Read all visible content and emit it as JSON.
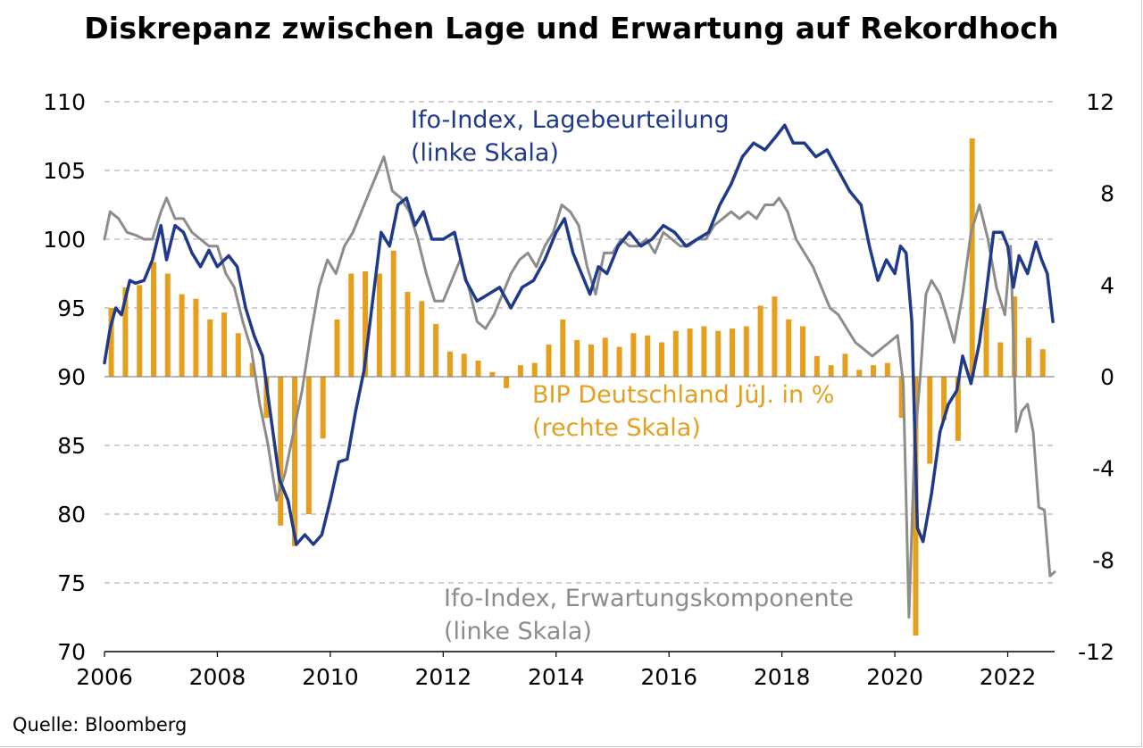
{
  "source": "Quelle: Bloomberg",
  "colors": {
    "ifo_lage": "#1f3a8a",
    "ifo_erwartung": "#8c8c8c",
    "bip": "#e69f1c",
    "grid": "#b4b4b4"
  },
  "chart_data": {
    "type": "line",
    "title": "Diskrepanz zwischen Lage und Erwartung auf Rekordhoch",
    "xlim": [
      2006.0,
      2022.83
    ],
    "x_ticks": [
      "2006",
      "2008",
      "2010",
      "2012",
      "2014",
      "2016",
      "2018",
      "2020",
      "2022"
    ],
    "y_left": {
      "lim": [
        70,
        110
      ],
      "ticks": [
        "70",
        "75",
        "80",
        "85",
        "90",
        "95",
        "100",
        "105",
        "110"
      ]
    },
    "y_right": {
      "lim": [
        -12,
        12
      ],
      "ticks": [
        "-12",
        "-8",
        "-4",
        "0",
        "4",
        "8",
        "12"
      ]
    },
    "grid": "horizontal dashed",
    "annotations": {
      "lage": [
        "Ifo-Index, Lagebeurteilung",
        "(linke Skala)"
      ],
      "bip": [
        "BIP Deutschland JüJ. in %",
        "(rechte Skala)"
      ],
      "erwartung": [
        "Ifo-Index, Erwartungskomponente",
        "(linke Skala)"
      ]
    },
    "series": [
      {
        "name": "Ifo-Index, Lagebeurteilung",
        "axis": "left",
        "x": [
          2006.0,
          2006.1,
          2006.2,
          2006.3,
          2006.45,
          2006.55,
          2006.7,
          2006.85,
          2007.0,
          2007.1,
          2007.25,
          2007.4,
          2007.55,
          2007.7,
          2007.85,
          2008.0,
          2008.2,
          2008.35,
          2008.5,
          2008.65,
          2008.8,
          2008.95,
          2009.1,
          2009.25,
          2009.4,
          2009.55,
          2009.7,
          2009.85,
          2010.0,
          2010.15,
          2010.3,
          2010.45,
          2010.6,
          2010.75,
          2010.9,
          2011.05,
          2011.2,
          2011.35,
          2011.5,
          2011.65,
          2011.8,
          2012.0,
          2012.2,
          2012.4,
          2012.6,
          2012.8,
          2013.0,
          2013.2,
          2013.4,
          2013.6,
          2013.8,
          2014.0,
          2014.15,
          2014.3,
          2014.45,
          2014.6,
          2014.75,
          2014.9,
          2015.1,
          2015.3,
          2015.5,
          2015.7,
          2015.9,
          2016.1,
          2016.3,
          2016.5,
          2016.7,
          2016.9,
          2017.1,
          2017.3,
          2017.5,
          2017.7,
          2017.9,
          2018.05,
          2018.2,
          2018.4,
          2018.6,
          2018.8,
          2019.0,
          2019.2,
          2019.4,
          2019.55,
          2019.7,
          2019.85,
          2020.0,
          2020.1,
          2020.2,
          2020.3,
          2020.4,
          2020.5,
          2020.65,
          2020.8,
          2020.95,
          2021.1,
          2021.2,
          2021.35,
          2021.5,
          2021.6,
          2021.75,
          2021.9,
          2022.0,
          2022.1,
          2022.2,
          2022.35,
          2022.5,
          2022.6,
          2022.7,
          2022.8
        ],
        "y": [
          91.0,
          93.5,
          95.0,
          94.5,
          97.0,
          96.8,
          97.0,
          98.5,
          101.0,
          98.5,
          101.0,
          100.5,
          99.0,
          98.0,
          99.2,
          98.0,
          98.8,
          98.0,
          95.0,
          93.0,
          91.5,
          87.0,
          82.5,
          81.0,
          77.8,
          78.5,
          77.8,
          78.5,
          81.0,
          83.8,
          84.0,
          87.5,
          90.5,
          95.5,
          100.5,
          99.5,
          102.5,
          103.0,
          101.0,
          102.0,
          100.0,
          100.0,
          100.5,
          97.0,
          95.5,
          96.0,
          96.5,
          95.0,
          96.5,
          97.0,
          98.5,
          100.5,
          101.5,
          99.0,
          97.5,
          96.0,
          98.0,
          97.5,
          99.5,
          100.5,
          99.5,
          100.0,
          101.0,
          100.5,
          99.5,
          100.0,
          100.5,
          102.5,
          104.0,
          106.0,
          107.0,
          106.5,
          107.5,
          108.3,
          107.0,
          107.0,
          106.0,
          106.5,
          105.0,
          103.5,
          102.5,
          99.5,
          97.0,
          98.5,
          97.5,
          99.5,
          99.0,
          94.0,
          79.0,
          78.0,
          81.5,
          86.0,
          88.0,
          89.0,
          91.5,
          89.5,
          92.5,
          95.5,
          100.5,
          100.5,
          99.5,
          96.5,
          98.8,
          97.5,
          99.8,
          98.5,
          97.5,
          94.0
        ]
      },
      {
        "name": "Ifo-Index, Erwartungskomponente",
        "axis": "left",
        "x": [
          2006.0,
          2006.1,
          2006.25,
          2006.4,
          2006.55,
          2006.7,
          2006.85,
          2007.0,
          2007.1,
          2007.25,
          2007.4,
          2007.55,
          2007.7,
          2007.85,
          2008.0,
          2008.15,
          2008.3,
          2008.45,
          2008.6,
          2008.75,
          2008.9,
          2009.05,
          2009.2,
          2009.35,
          2009.5,
          2009.65,
          2009.8,
          2009.95,
          2010.1,
          2010.25,
          2010.4,
          2010.55,
          2010.7,
          2010.85,
          2010.95,
          2011.1,
          2011.25,
          2011.4,
          2011.55,
          2011.7,
          2011.85,
          2012.0,
          2012.15,
          2012.3,
          2012.45,
          2012.6,
          2012.75,
          2012.9,
          2013.05,
          2013.2,
          2013.35,
          2013.5,
          2013.65,
          2013.8,
          2013.95,
          2014.1,
          2014.25,
          2014.4,
          2014.55,
          2014.7,
          2014.85,
          2015.0,
          2015.15,
          2015.3,
          2015.45,
          2015.6,
          2015.75,
          2015.9,
          2016.05,
          2016.2,
          2016.35,
          2016.5,
          2016.65,
          2016.8,
          2016.95,
          2017.1,
          2017.25,
          2017.4,
          2017.55,
          2017.7,
          2017.85,
          2017.95,
          2018.1,
          2018.25,
          2018.4,
          2018.55,
          2018.7,
          2018.85,
          2019.0,
          2019.15,
          2019.3,
          2019.45,
          2019.6,
          2019.75,
          2019.9,
          2020.05,
          2020.15,
          2020.25,
          2020.35,
          2020.45,
          2020.55,
          2020.65,
          2020.8,
          2020.95,
          2021.05,
          2021.2,
          2021.35,
          2021.5,
          2021.65,
          2021.8,
          2021.95,
          2022.05,
          2022.15,
          2022.25,
          2022.35,
          2022.45,
          2022.55,
          2022.65,
          2022.75,
          2022.83
        ],
        "y": [
          100.0,
          102.0,
          101.5,
          100.5,
          100.3,
          100.0,
          100.0,
          102.0,
          103.0,
          101.5,
          101.5,
          100.5,
          100.0,
          99.5,
          99.5,
          97.5,
          96.5,
          94.0,
          92.0,
          88.0,
          85.0,
          81.0,
          83.0,
          86.0,
          89.0,
          93.0,
          96.5,
          98.5,
          97.5,
          99.5,
          100.5,
          102.0,
          103.5,
          105.0,
          106.0,
          103.5,
          103.0,
          102.0,
          100.0,
          97.5,
          95.5,
          95.5,
          97.0,
          98.5,
          96.5,
          94.0,
          93.5,
          94.5,
          96.0,
          97.5,
          98.5,
          99.0,
          98.0,
          99.5,
          100.5,
          102.5,
          102.0,
          101.0,
          98.0,
          96.0,
          99.0,
          99.0,
          100.0,
          99.5,
          99.5,
          100.0,
          99.0,
          100.5,
          100.0,
          99.5,
          99.5,
          100.0,
          100.0,
          101.0,
          101.5,
          102.0,
          101.5,
          102.0,
          101.5,
          102.5,
          102.5,
          103.0,
          102.0,
          100.0,
          99.0,
          98.0,
          96.5,
          95.0,
          94.5,
          93.5,
          92.5,
          92.0,
          91.5,
          92.0,
          92.5,
          93.0,
          89.5,
          72.5,
          85.0,
          90.0,
          96.0,
          97.0,
          96.0,
          94.0,
          92.5,
          96.0,
          100.5,
          102.5,
          100.0,
          96.5,
          94.5,
          99.5,
          86.0,
          87.5,
          88.0,
          86.0,
          80.5,
          80.3,
          75.5,
          75.8
        ]
      },
      {
        "name": "BIP Deutschland JüJ. in %",
        "axis": "right",
        "type": "bar",
        "x": [
          2006.12,
          2006.37,
          2006.62,
          2006.87,
          2007.12,
          2007.37,
          2007.62,
          2007.87,
          2008.12,
          2008.37,
          2008.62,
          2008.87,
          2009.12,
          2009.37,
          2009.62,
          2009.87,
          2010.12,
          2010.37,
          2010.62,
          2010.87,
          2011.12,
          2011.37,
          2011.62,
          2011.87,
          2012.12,
          2012.37,
          2012.62,
          2012.87,
          2013.12,
          2013.37,
          2013.62,
          2013.87,
          2014.12,
          2014.37,
          2014.62,
          2014.87,
          2015.12,
          2015.37,
          2015.62,
          2015.87,
          2016.12,
          2016.37,
          2016.62,
          2016.87,
          2017.12,
          2017.37,
          2017.62,
          2017.87,
          2018.12,
          2018.37,
          2018.62,
          2018.87,
          2019.12,
          2019.37,
          2019.62,
          2019.87,
          2020.12,
          2020.37,
          2020.62,
          2020.87,
          2021.12,
          2021.37,
          2021.62,
          2021.87,
          2022.12,
          2022.37,
          2022.62
        ],
        "values": [
          3.0,
          3.9,
          4.0,
          5.0,
          4.5,
          3.6,
          3.4,
          2.5,
          2.8,
          1.9,
          0.6,
          -1.8,
          -6.5,
          -7.4,
          -6.0,
          -2.7,
          2.5,
          4.5,
          4.6,
          4.5,
          5.5,
          3.7,
          3.3,
          2.3,
          1.1,
          1.0,
          0.7,
          0.2,
          -0.5,
          0.5,
          0.6,
          1.4,
          2.5,
          1.6,
          1.4,
          1.7,
          1.3,
          1.9,
          1.8,
          1.5,
          2.0,
          2.1,
          2.2,
          2.0,
          2.1,
          2.2,
          3.1,
          3.5,
          2.5,
          2.2,
          0.9,
          0.5,
          1.0,
          0.3,
          0.5,
          0.6,
          -1.8,
          -11.3,
          -3.8,
          -1.9,
          -2.8,
          10.4,
          3.0,
          1.5,
          3.5,
          1.7,
          1.2
        ]
      }
    ]
  }
}
